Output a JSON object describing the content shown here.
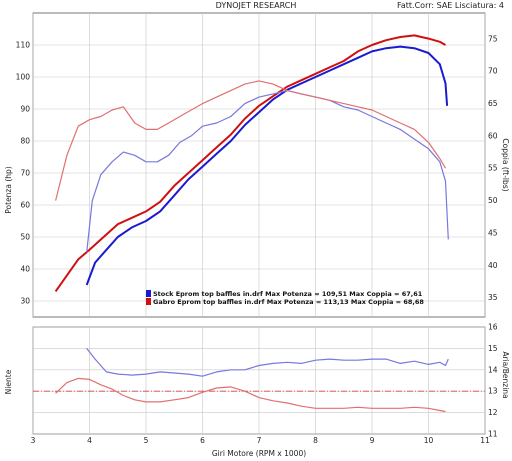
{
  "header": {
    "title": "DYNOJET RESEARCH",
    "correction": "Fatt.Corr: SAE  Lisciatura: 4"
  },
  "chart_data": [
    {
      "type": "line",
      "panel": "top",
      "xlabel": "Giri Motore (RPM x 1000)",
      "ylabel_left": "Potenza (hp)",
      "ylabel_right": "Coppia (ft-lbs)",
      "xlim": [
        3,
        11
      ],
      "ylim_left": [
        25,
        120
      ],
      "ylim_right": [
        32,
        79
      ],
      "x_ticks": [
        3,
        4,
        5,
        6,
        7,
        8,
        9,
        10,
        11
      ],
      "y_ticks_left": [
        30,
        40,
        50,
        60,
        70,
        80,
        90,
        100,
        110
      ],
      "y_ticks_right": [
        35,
        40,
        45,
        50,
        55,
        60,
        65,
        70,
        75
      ],
      "grid": true,
      "legend_position": "bottom-right",
      "legend": [
        "Stock Eprom top baffles in.drf Max Potenza = 109,51 Max Coppia = 67,61",
        "Gabro Eprom top baffles in.drf Max Potenza = 113,13 Max Coppia = 68,68"
      ],
      "series": [
        {
          "name": "Stock Eprom top baffles in.drf",
          "quantity": "Potenza",
          "axis": "left",
          "color": "#1a1ad0",
          "x": [
            3.95,
            4.1,
            4.3,
            4.5,
            4.75,
            5.0,
            5.25,
            5.5,
            5.75,
            6.0,
            6.25,
            6.5,
            6.75,
            7.0,
            7.25,
            7.5,
            7.75,
            8.0,
            8.25,
            8.5,
            8.75,
            9.0,
            9.25,
            9.5,
            9.75,
            10.0,
            10.2,
            10.3,
            10.33
          ],
          "values": [
            35,
            42,
            46,
            50,
            53,
            55,
            58,
            63,
            68,
            72,
            76,
            80,
            85,
            89,
            93,
            96,
            98,
            100,
            102,
            104,
            106,
            108,
            109,
            109.5,
            109,
            107.5,
            104,
            98,
            91
          ]
        },
        {
          "name": "Gabro Eprom top baffles in.drf",
          "quantity": "Potenza",
          "axis": "left",
          "color": "#d01010",
          "x": [
            3.4,
            3.6,
            3.8,
            4.0,
            4.25,
            4.5,
            4.75,
            5.0,
            5.25,
            5.5,
            5.75,
            6.0,
            6.25,
            6.5,
            6.75,
            7.0,
            7.25,
            7.5,
            7.75,
            8.0,
            8.25,
            8.5,
            8.75,
            9.0,
            9.25,
            9.5,
            9.75,
            10.0,
            10.2,
            10.3
          ],
          "values": [
            33,
            38,
            43,
            46,
            50,
            54,
            56,
            58,
            61,
            66,
            70,
            74,
            78,
            82,
            87,
            91,
            94,
            97,
            99,
            101,
            103,
            105,
            108,
            110,
            111.5,
            112.5,
            113,
            112,
            111,
            110
          ]
        },
        {
          "name": "Stock Eprom top baffles in.drf",
          "quantity": "Coppia",
          "axis": "right",
          "color": "#7878dd",
          "x": [
            3.95,
            4.05,
            4.2,
            4.4,
            4.6,
            4.8,
            5.0,
            5.2,
            5.4,
            5.6,
            5.8,
            6.0,
            6.25,
            6.5,
            6.75,
            7.0,
            7.25,
            7.5,
            7.75,
            8.0,
            8.25,
            8.5,
            8.75,
            9.0,
            9.25,
            9.5,
            9.75,
            10.0,
            10.2,
            10.3,
            10.35
          ],
          "values": [
            42,
            50,
            54,
            56,
            57.5,
            57,
            56,
            56,
            57,
            59,
            60,
            61.5,
            62,
            63,
            65,
            66,
            66.5,
            67,
            66.5,
            66,
            65.5,
            64.5,
            64,
            63,
            62,
            61,
            59.5,
            58,
            56,
            53,
            44
          ]
        },
        {
          "name": "Gabro Eprom top baffles in.drf",
          "quantity": "Coppia",
          "axis": "right",
          "color": "#e07070",
          "x": [
            3.4,
            3.6,
            3.8,
            4.0,
            4.2,
            4.4,
            4.6,
            4.8,
            5.0,
            5.2,
            5.4,
            5.6,
            5.8,
            6.0,
            6.25,
            6.5,
            6.75,
            7.0,
            7.25,
            7.5,
            7.75,
            8.0,
            8.25,
            8.5,
            8.75,
            9.0,
            9.25,
            9.5,
            9.75,
            10.0,
            10.2,
            10.3
          ],
          "values": [
            50,
            57,
            61.5,
            62.5,
            63,
            64,
            64.5,
            62,
            61,
            61,
            62,
            63,
            64,
            65,
            66,
            67,
            68,
            68.5,
            68,
            67,
            66.5,
            66,
            65.5,
            65,
            64.5,
            64,
            63,
            62,
            61,
            59,
            56.5,
            55
          ]
        }
      ]
    },
    {
      "type": "line",
      "panel": "bottom",
      "ylabel_left": "Niente",
      "ylabel_right": "Aria/Benzina",
      "xlim": [
        3,
        11
      ],
      "ylim_right": [
        11,
        16
      ],
      "y_ticks_right": [
        11,
        12,
        13,
        14,
        15,
        16
      ],
      "x_ticks": [
        3,
        4,
        5,
        6,
        7,
        8,
        9,
        10,
        11
      ],
      "x_tick_labels": [
        "3",
        "4",
        "5",
        "6",
        "7",
        "8",
        "9",
        "10",
        "11"
      ],
      "reference_line": 13.0,
      "grid": true,
      "series": [
        {
          "name": "Stock Eprom top baffles in.drf",
          "color": "#7878dd",
          "x": [
            3.95,
            4.1,
            4.3,
            4.5,
            4.75,
            5.0,
            5.25,
            5.5,
            5.75,
            6.0,
            6.25,
            6.5,
            6.75,
            7.0,
            7.25,
            7.5,
            7.75,
            8.0,
            8.25,
            8.5,
            8.75,
            9.0,
            9.25,
            9.5,
            9.75,
            10.0,
            10.2,
            10.3,
            10.35
          ],
          "values": [
            15.0,
            14.5,
            13.9,
            13.8,
            13.75,
            13.8,
            13.9,
            13.85,
            13.8,
            13.7,
            13.9,
            14.0,
            14.0,
            14.2,
            14.3,
            14.35,
            14.3,
            14.45,
            14.5,
            14.45,
            14.45,
            14.5,
            14.5,
            14.3,
            14.4,
            14.25,
            14.35,
            14.2,
            14.5
          ]
        },
        {
          "name": "Gabro Eprom top baffles in.drf",
          "color": "#e07070",
          "x": [
            3.4,
            3.6,
            3.8,
            4.0,
            4.2,
            4.4,
            4.6,
            4.8,
            5.0,
            5.25,
            5.5,
            5.75,
            6.0,
            6.25,
            6.5,
            6.75,
            7.0,
            7.25,
            7.5,
            7.75,
            8.0,
            8.25,
            8.5,
            8.75,
            9.0,
            9.25,
            9.5,
            9.75,
            10.0,
            10.2,
            10.3
          ],
          "values": [
            12.9,
            13.4,
            13.6,
            13.55,
            13.3,
            13.1,
            12.8,
            12.6,
            12.5,
            12.5,
            12.6,
            12.7,
            12.95,
            13.15,
            13.2,
            13.0,
            12.7,
            12.55,
            12.45,
            12.3,
            12.2,
            12.2,
            12.2,
            12.25,
            12.2,
            12.2,
            12.2,
            12.25,
            12.2,
            12.1,
            12.05
          ]
        }
      ]
    }
  ]
}
